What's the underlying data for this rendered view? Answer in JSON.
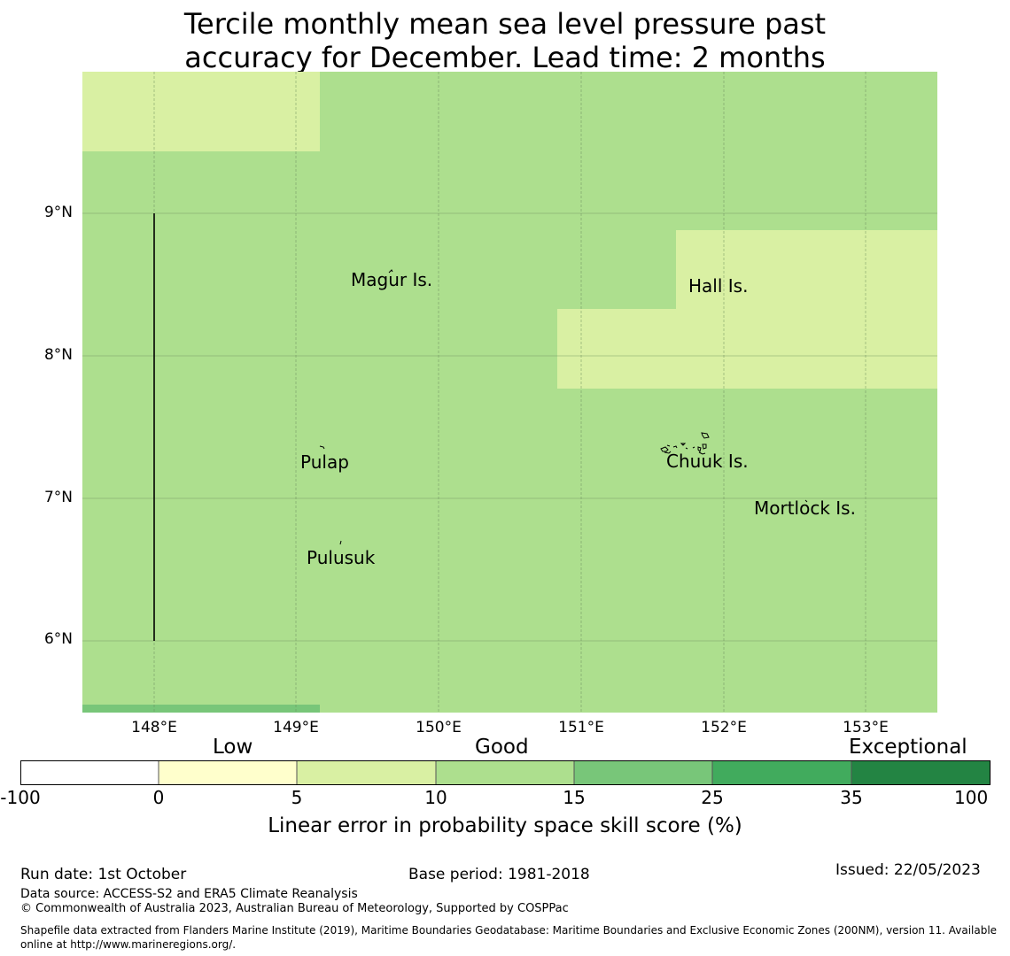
{
  "title": {
    "line1": "Tercile monthly mean sea level pressure past",
    "line2": "accuracy for December. Lead time: 2 months"
  },
  "map": {
    "lat_ticks": [
      "9°N",
      "8°N",
      "7°N",
      "6°N"
    ],
    "lon_ticks": [
      "148°E",
      "149°E",
      "150°E",
      "151°E",
      "152°E",
      "153°E"
    ],
    "places": [
      {
        "name": "Magur Is."
      },
      {
        "name": "Hall Is."
      },
      {
        "name": "Pulap"
      },
      {
        "name": "Chuuk Is."
      },
      {
        "name": "Mortlock Is."
      },
      {
        "name": "Pulusuk"
      }
    ],
    "colors": {
      "background_category": "#addf8e",
      "low_patch": "#d9f0a3",
      "strip": "#78c679",
      "grid": "#6a8a5a",
      "boundary": "#000000"
    }
  },
  "colorbar": {
    "categories": [
      "Low",
      "Good",
      "Exceptional"
    ],
    "ticks": [
      "-100",
      "0",
      "5",
      "10",
      "15",
      "25",
      "35",
      "100"
    ],
    "colors": [
      "#ffffff",
      "#ffffcc",
      "#d9f0a3",
      "#addf8e",
      "#78c679",
      "#41ab5d",
      "#238443"
    ],
    "label": "Linear error in probability space skill score (%)"
  },
  "footer": {
    "run_date": "Run date: 1st October",
    "base_period": "Base period: 1981-2018",
    "issued": "Issued: 22/05/2023",
    "data_source": "Data source: ACCESS-S2 and ERA5 Climate Reanalysis",
    "copyright": "© Commonwealth of Australia 2023, Australian Bureau of Meteorology, Supported by COSPPac",
    "shapefile": "Shapefile data extracted from Flanders Marine Institute (2019), Maritime Boundaries Geodatabase: Maritime Boundaries and Exclusive Economic Zones (200NM), version 11. Available online at http://www.marineregions.org/."
  }
}
